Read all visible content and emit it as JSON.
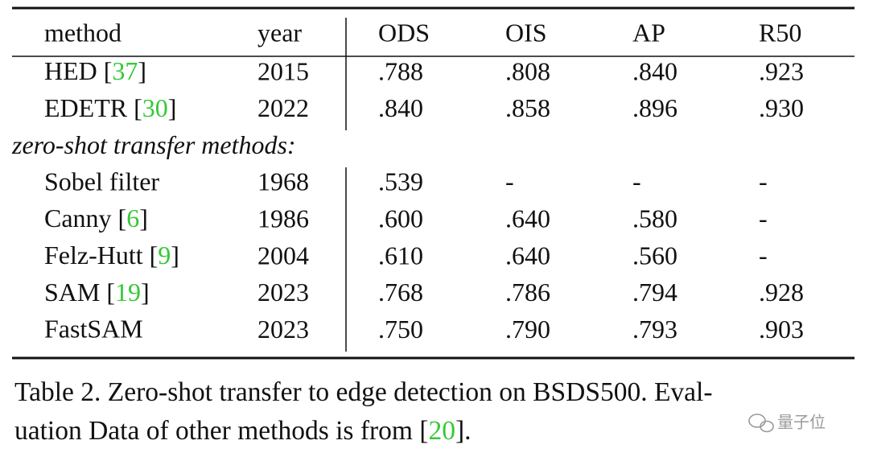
{
  "table": {
    "header": [
      "method",
      "year",
      "ODS",
      "OIS",
      "AP",
      "R50"
    ],
    "groups": [
      {
        "rows": [
          {
            "method": [
              "HED [",
              "37",
              "]"
            ],
            "cells": [
              "2015",
              ".788",
              ".808",
              ".840",
              ".923"
            ]
          },
          {
            "method": [
              "EDETR [",
              "30",
              "]"
            ],
            "cells": [
              "2022",
              ".840",
              ".858",
              ".896",
              ".930"
            ]
          }
        ]
      },
      {
        "label": "zero-shot transfer methods:",
        "rows": [
          {
            "method": [
              "Sobel filter"
            ],
            "cells": [
              "1968",
              ".539",
              "-",
              "-",
              "-"
            ]
          },
          {
            "method": [
              "Canny [",
              "6",
              "]"
            ],
            "cells": [
              "1986",
              ".600",
              ".640",
              ".580",
              "-"
            ]
          },
          {
            "method": [
              "Felz-Hutt [",
              "9",
              "]"
            ],
            "cells": [
              "2004",
              ".610",
              ".640",
              ".560",
              "-"
            ]
          },
          {
            "method": [
              "SAM [",
              "19",
              "]"
            ],
            "cells": [
              "2023",
              ".768",
              ".786",
              ".794",
              ".928"
            ]
          },
          {
            "method": [
              "FastSAM"
            ],
            "cells": [
              "2023",
              ".750",
              ".790",
              ".793",
              ".903"
            ]
          }
        ]
      }
    ]
  },
  "caption": {
    "lines": [
      [
        "Table 2. Zero-shot transfer to edge detection on BSDS500. Eval-"
      ],
      [
        "uation Data of other methods is from [",
        "20",
        "]."
      ]
    ]
  },
  "watermark": "量子位"
}
